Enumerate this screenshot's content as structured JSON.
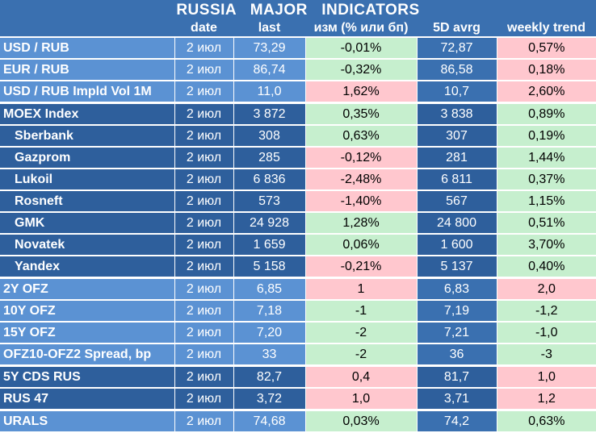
{
  "title": "RUSSIA   MAJOR   INDICATORS",
  "columns": {
    "name": "",
    "date": "date",
    "last": "last",
    "change": "изм (% или бп)",
    "avg5d": "5D avrg",
    "trend": "weekly trend"
  },
  "colors": {
    "header_blue": "#3a70b0",
    "light_blue": "#5b92d3",
    "dark_blue": "#2e5f9c",
    "positive_green": "#c6efce",
    "negative_red": "#ffc7ce"
  },
  "rows": [
    {
      "name": "USD / RUB",
      "date": "2 июл",
      "last": "73,29",
      "change": "-0,01%",
      "change_tone": "pos",
      "avg5d": "72,87",
      "trend": "0,57%",
      "trend_tone": "neg",
      "group": "light",
      "indent": false,
      "group_top": false
    },
    {
      "name": "EUR / RUB",
      "date": "2 июл",
      "last": "86,74",
      "change": "-0,32%",
      "change_tone": "pos",
      "avg5d": "86,58",
      "trend": "0,18%",
      "trend_tone": "neg",
      "group": "light",
      "indent": false,
      "group_top": false
    },
    {
      "name": "USD / RUB Impld Vol 1M",
      "date": "2 июл",
      "last": "11,0",
      "change": "1,62%",
      "change_tone": "neg",
      "avg5d": "10,7",
      "trend": "2,60%",
      "trend_tone": "neg",
      "group": "light",
      "indent": false,
      "group_top": false
    },
    {
      "name": "MOEX Index",
      "date": "2 июл",
      "last": "3 872",
      "change": "0,35%",
      "change_tone": "pos",
      "avg5d": "3 838",
      "trend": "0,89%",
      "trend_tone": "pos",
      "group": "dark",
      "indent": false,
      "group_top": true
    },
    {
      "name": "Sberbank",
      "date": "2 июл",
      "last": "308",
      "change": "0,63%",
      "change_tone": "pos",
      "avg5d": "307",
      "trend": "0,19%",
      "trend_tone": "pos",
      "group": "dark",
      "indent": true,
      "group_top": false
    },
    {
      "name": "Gazprom",
      "date": "2 июл",
      "last": "285",
      "change": "-0,12%",
      "change_tone": "neg",
      "avg5d": "281",
      "trend": "1,44%",
      "trend_tone": "pos",
      "group": "dark",
      "indent": true,
      "group_top": false
    },
    {
      "name": "Lukoil",
      "date": "2 июл",
      "last": "6 836",
      "change": "-2,48%",
      "change_tone": "neg",
      "avg5d": "6 811",
      "trend": "0,37%",
      "trend_tone": "pos",
      "group": "dark",
      "indent": true,
      "group_top": false
    },
    {
      "name": "Rosneft",
      "date": "2 июл",
      "last": "573",
      "change": "-1,40%",
      "change_tone": "neg",
      "avg5d": "567",
      "trend": "1,15%",
      "trend_tone": "pos",
      "group": "dark",
      "indent": true,
      "group_top": false
    },
    {
      "name": "GMK",
      "date": "2 июл",
      "last": "24 928",
      "change": "1,28%",
      "change_tone": "pos",
      "avg5d": "24 800",
      "trend": "0,51%",
      "trend_tone": "pos",
      "group": "dark",
      "indent": true,
      "group_top": false
    },
    {
      "name": "Novatek",
      "date": "2 июл",
      "last": "1 659",
      "change": "0,06%",
      "change_tone": "pos",
      "avg5d": "1 600",
      "trend": "3,70%",
      "trend_tone": "pos",
      "group": "dark",
      "indent": true,
      "group_top": false
    },
    {
      "name": "Yandex",
      "date": "2 июл",
      "last": "5 158",
      "change": "-0,21%",
      "change_tone": "neg",
      "avg5d": "5 137",
      "trend": "0,40%",
      "trend_tone": "pos",
      "group": "dark",
      "indent": true,
      "group_top": false
    },
    {
      "name": "2Y OFZ",
      "date": "2 июл",
      "last": "6,85",
      "change": "1",
      "change_tone": "neg",
      "avg5d": "6,83",
      "trend": "2,0",
      "trend_tone": "neg",
      "group": "light",
      "indent": false,
      "group_top": true
    },
    {
      "name": "10Y OFZ",
      "date": "2 июл",
      "last": "7,18",
      "change": "-1",
      "change_tone": "pos",
      "avg5d": "7,19",
      "trend": "-1,2",
      "trend_tone": "pos",
      "group": "light",
      "indent": false,
      "group_top": false
    },
    {
      "name": "15Y OFZ",
      "date": "2 июл",
      "last": "7,20",
      "change": "-2",
      "change_tone": "pos",
      "avg5d": "7,21",
      "trend": "-1,0",
      "trend_tone": "pos",
      "group": "light",
      "indent": false,
      "group_top": false
    },
    {
      "name": "OFZ10-OFZ2 Spread, bp",
      "date": "2 июл",
      "last": "33",
      "change": "-2",
      "change_tone": "pos",
      "avg5d": "36",
      "trend": "-3",
      "trend_tone": "pos",
      "group": "light",
      "indent": false,
      "group_top": false
    },
    {
      "name": "5Y CDS RUS",
      "date": "2 июл",
      "last": "82,7",
      "change": "0,4",
      "change_tone": "neg",
      "avg5d": "81,7",
      "trend": "1,0",
      "trend_tone": "neg",
      "group": "dark",
      "indent": false,
      "group_top": true
    },
    {
      "name": "RUS 47",
      "date": "2 июл",
      "last": "3,72",
      "change": "1,0",
      "change_tone": "neg",
      "avg5d": "3,71",
      "trend": "1,2",
      "trend_tone": "neg",
      "group": "dark",
      "indent": false,
      "group_top": false
    },
    {
      "name": "URALS",
      "date": "2 июл",
      "last": "74,68",
      "change": "0,03%",
      "change_tone": "pos",
      "avg5d": "74,2",
      "trend": "0,63%",
      "trend_tone": "pos",
      "group": "light",
      "indent": false,
      "group_top": true
    }
  ]
}
